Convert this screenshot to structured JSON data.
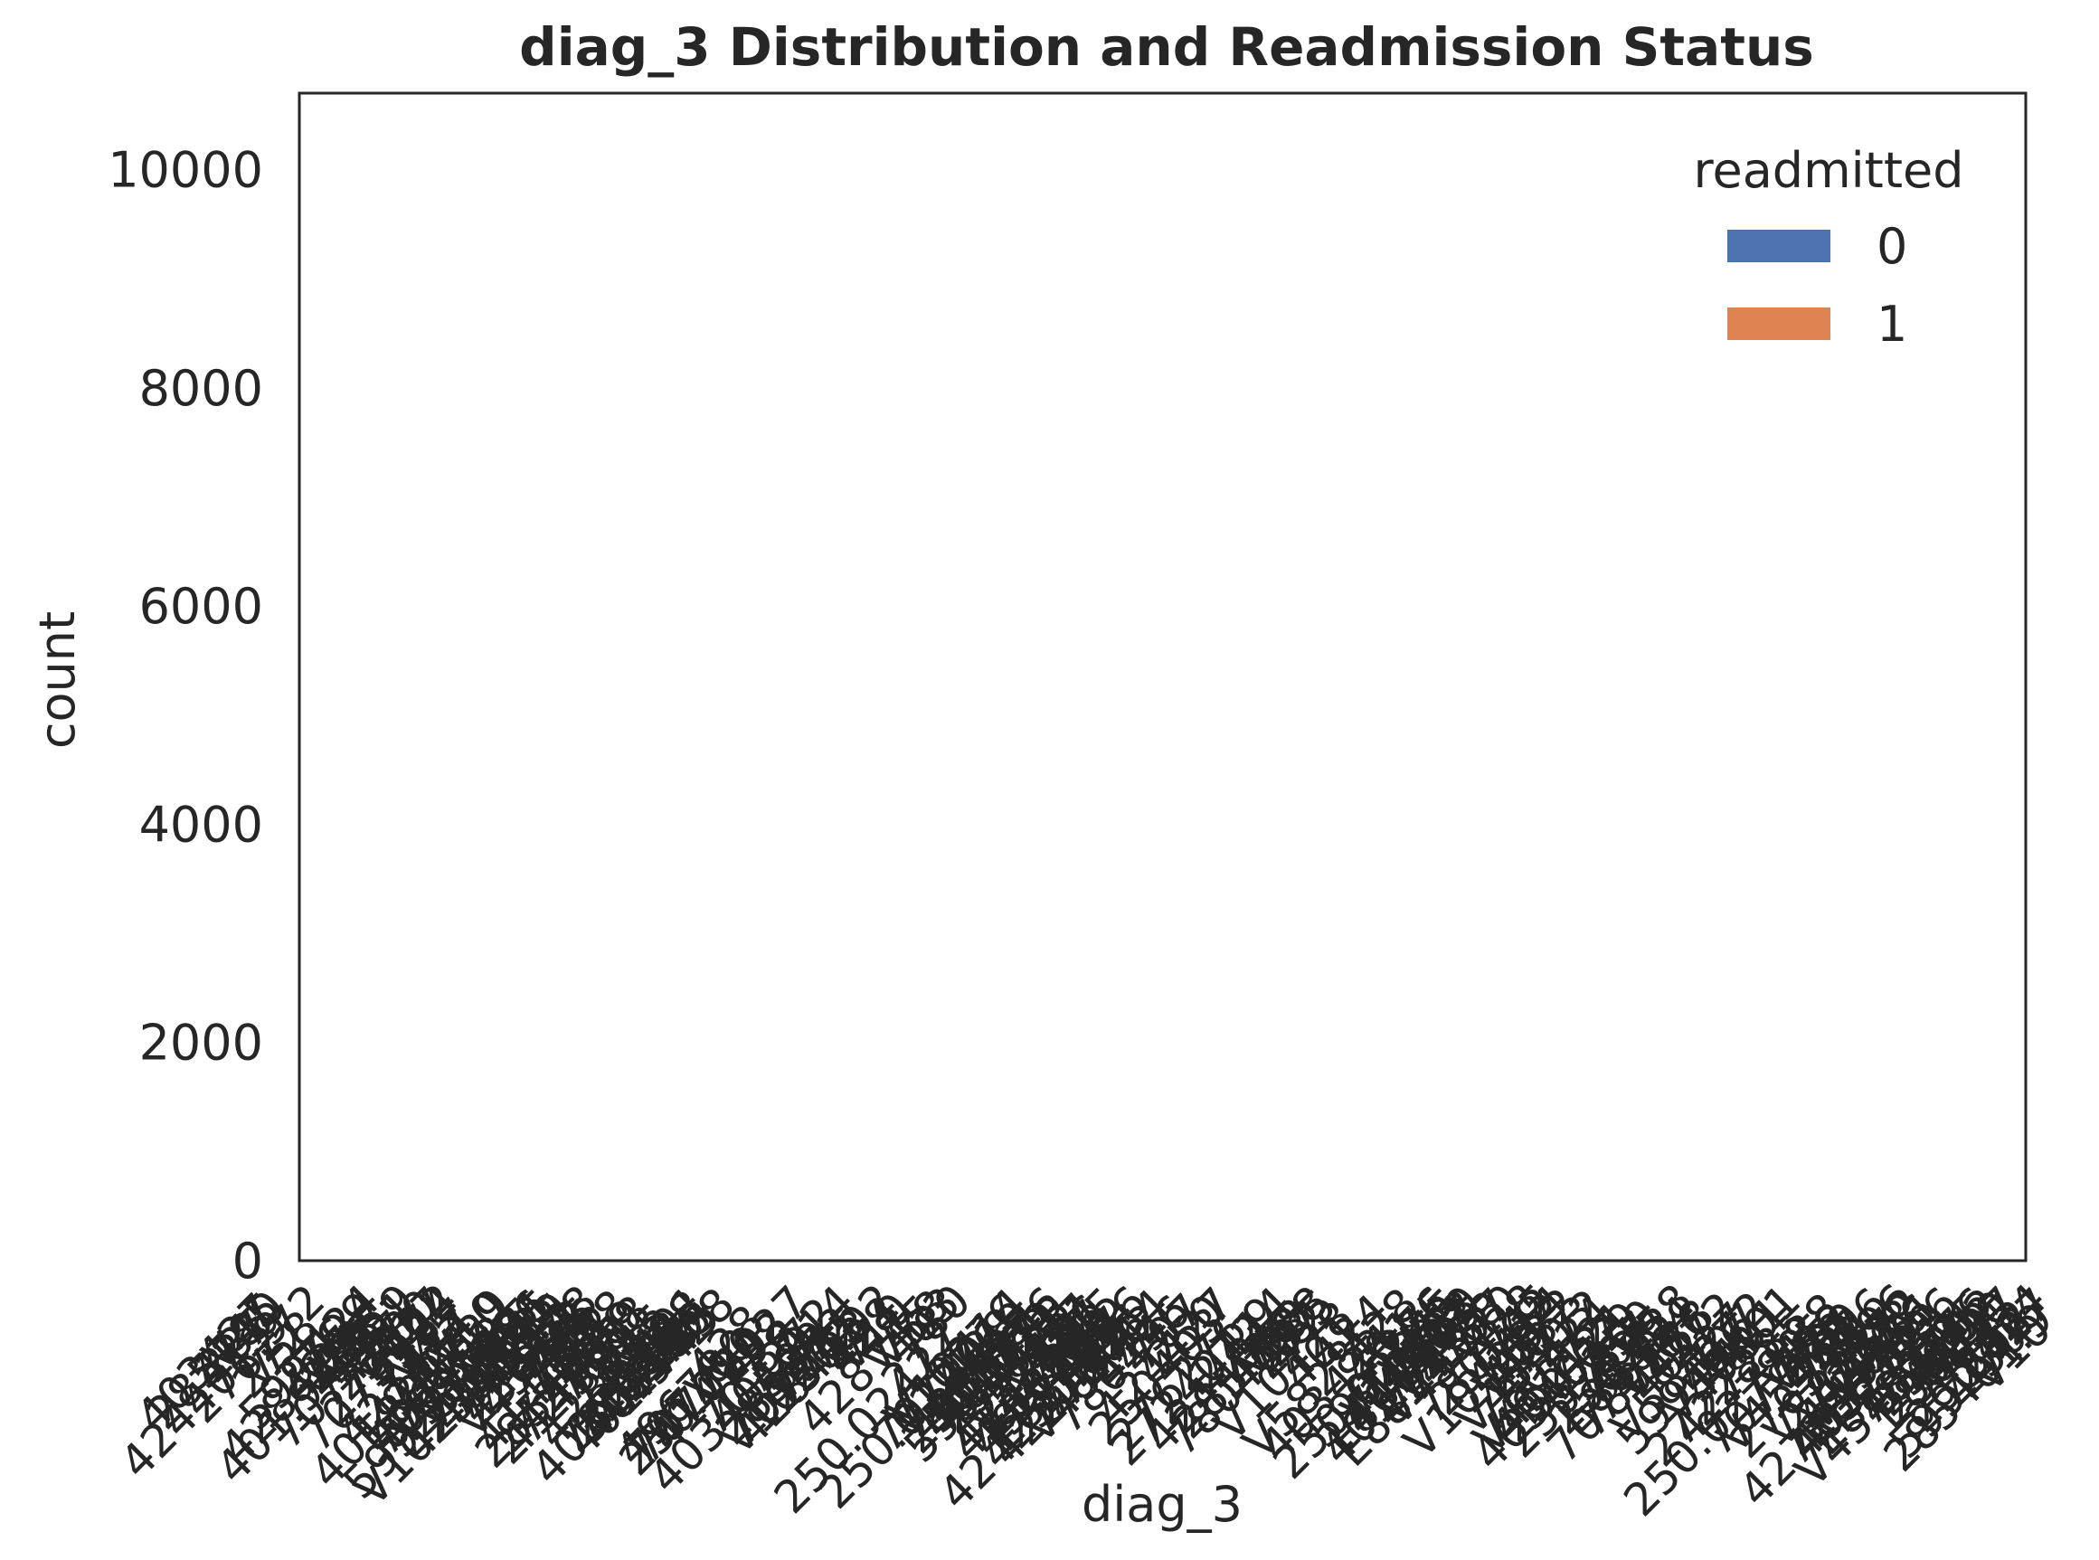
{
  "chart_data": {
    "type": "bar",
    "title": "diag_3 Distribution and Readmission Status",
    "xlabel": "diag_3",
    "ylabel": "count",
    "ylim": [
      0,
      10700
    ],
    "y_ticks": [
      0,
      2000,
      4000,
      6000,
      8000,
      10000
    ],
    "x_tick_labels_legible": false,
    "x_tick_label_rotation": 45,
    "grid": false,
    "legend": {
      "title": "readmitted",
      "placement": "top-right",
      "entries": [
        {
          "label": "0",
          "color": "#4c72b0"
        },
        {
          "label": "1",
          "color": "#dd8452"
        }
      ]
    },
    "series": [
      {
        "name": "0",
        "color": "#4c72b0",
        "values": []
      },
      {
        "name": "1",
        "color": "#dd8452",
        "values": []
      }
    ],
    "categories": []
  }
}
